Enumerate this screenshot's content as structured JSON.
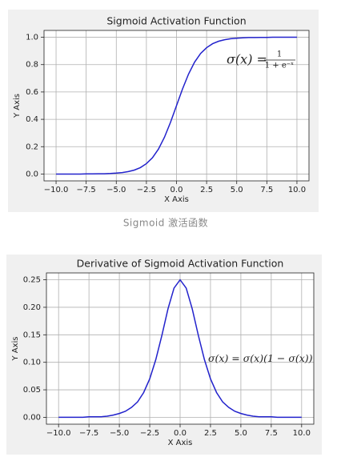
{
  "chart_data": [
    {
      "type": "line",
      "title": "Sigmoid Activation Function",
      "x_label": "X Axis",
      "y_label": "Y Axis",
      "x": [
        -10,
        -9.5,
        -9,
        -8.5,
        -8,
        -7.5,
        -7,
        -6.5,
        -6,
        -5.5,
        -5,
        -4.5,
        -4,
        -3.5,
        -3,
        -2.5,
        -2,
        -1.5,
        -1,
        -0.5,
        0,
        0.5,
        1,
        1.5,
        2,
        2.5,
        3,
        3.5,
        4,
        4.5,
        5,
        5.5,
        6,
        6.5,
        7,
        7.5,
        8,
        8.5,
        9,
        9.5,
        10
      ],
      "values": [
        0,
        0,
        0,
        0,
        0,
        0.001,
        0.001,
        0.002,
        0.002,
        0.004,
        0.007,
        0.011,
        0.018,
        0.029,
        0.047,
        0.076,
        0.119,
        0.182,
        0.269,
        0.378,
        0.5,
        0.622,
        0.731,
        0.818,
        0.881,
        0.924,
        0.953,
        0.971,
        0.982,
        0.989,
        0.993,
        0.996,
        0.998,
        0.998,
        0.999,
        0.999,
        1,
        1,
        1,
        1,
        1
      ],
      "color": "#2222cc",
      "xlim": [
        -11,
        11
      ],
      "ylim": [
        -0.05,
        1.05
      ],
      "xticks": [
        {
          "value": -10,
          "label": "−10.0"
        },
        {
          "value": -7.5,
          "label": "−7.5"
        },
        {
          "value": -5,
          "label": "−5.0"
        },
        {
          "value": -2.5,
          "label": "−2.5"
        },
        {
          "value": 0,
          "label": "0.0"
        },
        2.5,
        {
          "value": 5,
          "label": "5.0"
        },
        7.5,
        {
          "value": 10,
          "label": "10.0"
        }
      ],
      "yticks": [
        {
          "value": 0,
          "label": "0.0"
        },
        0.2,
        0.4,
        0.6,
        0.8,
        {
          "value": 1,
          "label": "1.0"
        }
      ],
      "grid": true,
      "annotation": {
        "lhs": "σ(x) =",
        "numerator": "1",
        "denominator": "1 + e⁻ˣ"
      }
    },
    {
      "type": "line",
      "title": "Derivative of Sigmoid Activation Function",
      "x_label": "X Axis",
      "y_label": "Y Axis",
      "x": [
        -10,
        -9.5,
        -9,
        -8.5,
        -8,
        -7.5,
        -7,
        -6.5,
        -6,
        -5.5,
        -5,
        -4.5,
        -4,
        -3.5,
        -3,
        -2.5,
        -2,
        -1.5,
        -1,
        -0.5,
        0,
        0.5,
        1,
        1.5,
        2,
        2.5,
        3,
        3.5,
        4,
        4.5,
        5,
        5.5,
        6,
        6.5,
        7,
        7.5,
        8,
        8.5,
        9,
        9.5,
        10
      ],
      "values": [
        0,
        0,
        0,
        0,
        0,
        0.001,
        0.001,
        0.001,
        0.002,
        0.004,
        0.007,
        0.011,
        0.018,
        0.028,
        0.045,
        0.07,
        0.105,
        0.149,
        0.197,
        0.235,
        0.25,
        0.235,
        0.197,
        0.149,
        0.105,
        0.07,
        0.045,
        0.028,
        0.018,
        0.011,
        0.007,
        0.004,
        0.002,
        0.001,
        0.001,
        0.001,
        0,
        0,
        0,
        0,
        0
      ],
      "color": "#2222cc",
      "xlim": [
        -11,
        11
      ],
      "ylim": [
        -0.0125,
        0.2625
      ],
      "xticks": [
        {
          "value": -10,
          "label": "−10.0"
        },
        {
          "value": -7.5,
          "label": "−7.5"
        },
        {
          "value": -5,
          "label": "−5.0"
        },
        {
          "value": -2.5,
          "label": "−2.5"
        },
        {
          "value": 0,
          "label": "0.0"
        },
        2.5,
        {
          "value": 5,
          "label": "5.0"
        },
        7.5,
        {
          "value": 10,
          "label": "10.0"
        }
      ],
      "yticks": [
        {
          "value": 0,
          "label": "0.00"
        },
        0.05,
        {
          "value": 0.1,
          "label": "0.10"
        },
        0.15,
        {
          "value": 0.2,
          "label": "0.20"
        },
        0.25
      ],
      "grid": true,
      "annotation": {
        "text": "σ(x) = σ(x)(1 − σ(x))"
      }
    }
  ],
  "caption": "Sigmoid 激活函数"
}
